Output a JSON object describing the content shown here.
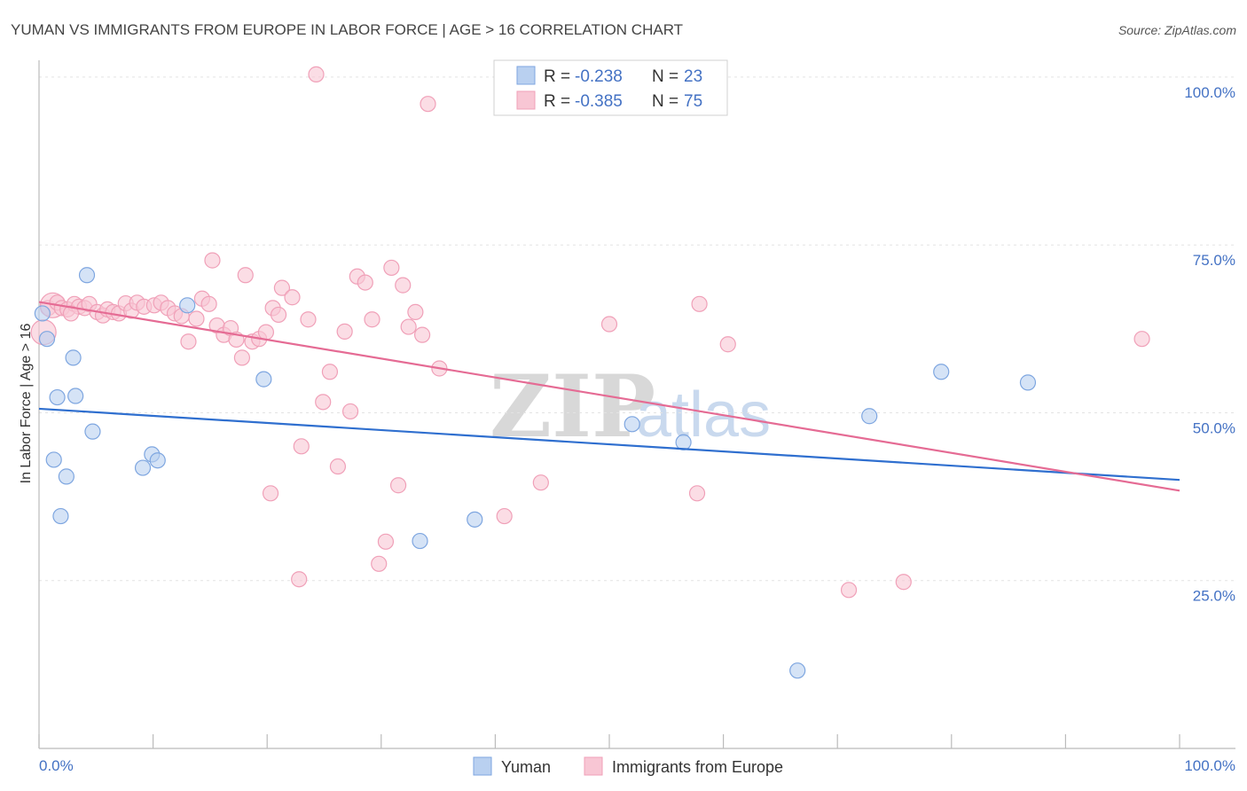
{
  "chart_data": {
    "type": "scatter",
    "title": "YUMAN VS IMMIGRANTS FROM EUROPE IN LABOR FORCE | AGE > 16 CORRELATION CHART",
    "source": "Source: ZipAtlas.com",
    "xlabel": "",
    "ylabel": "In Labor Force | Age > 16",
    "xlim": [
      0,
      100
    ],
    "ylim": [
      0,
      102.5
    ],
    "x_tick_labels": [
      "0.0%",
      "100.0%"
    ],
    "y_ticks": [
      25,
      50,
      75,
      100
    ],
    "y_tick_labels": [
      "25.0%",
      "50.0%",
      "75.0%",
      "100.0%"
    ],
    "grid": true,
    "watermark": {
      "zip": "ZIP",
      "atlas": "atlas"
    },
    "legend": {
      "r_label": "R =",
      "n_label": "N =",
      "entries": [
        {
          "r": "-0.238",
          "n": "23"
        },
        {
          "r": "-0.385",
          "n": "75"
        }
      ]
    },
    "series": [
      {
        "name": "Yuman",
        "color": "#7ea6e0",
        "fill": "#b9d0f0",
        "line_color": "#2f6fcf",
        "trend": [
          [
            0,
            50.6
          ],
          [
            100,
            40.0
          ]
        ],
        "points": [
          [
            0.3,
            64.8
          ],
          [
            0.7,
            61.0
          ],
          [
            1.6,
            52.3
          ],
          [
            1.9,
            34.6
          ],
          [
            1.3,
            43.0
          ],
          [
            2.4,
            40.5
          ],
          [
            3.0,
            58.2
          ],
          [
            3.2,
            52.5
          ],
          [
            4.2,
            70.5
          ],
          [
            4.7,
            47.2
          ],
          [
            9.1,
            41.8
          ],
          [
            9.9,
            43.8
          ],
          [
            10.4,
            42.9
          ],
          [
            13.0,
            66.0
          ],
          [
            19.7,
            55.0
          ],
          [
            33.4,
            30.9
          ],
          [
            38.2,
            34.1
          ],
          [
            52.0,
            48.3
          ],
          [
            56.5,
            45.6
          ],
          [
            72.8,
            49.5
          ],
          [
            79.1,
            56.1
          ],
          [
            86.7,
            54.5
          ],
          [
            66.5,
            11.6
          ]
        ]
      },
      {
        "name": "Immigrants from Europe",
        "color": "#f0a0b8",
        "fill": "#f8c6d4",
        "line_color": "#e56b94",
        "trend": [
          [
            0,
            66.5
          ],
          [
            100,
            38.4
          ]
        ],
        "points": [
          [
            0.4,
            62.0
          ],
          [
            0.8,
            65.6
          ],
          [
            1.2,
            66.0
          ],
          [
            1.6,
            66.4
          ],
          [
            2.0,
            65.6
          ],
          [
            2.5,
            65.4
          ],
          [
            3.1,
            66.2
          ],
          [
            3.5,
            65.8
          ],
          [
            4.0,
            65.6
          ],
          [
            4.4,
            66.2
          ],
          [
            5.1,
            65.0
          ],
          [
            5.6,
            64.5
          ],
          [
            6.0,
            65.4
          ],
          [
            6.5,
            65.0
          ],
          [
            7.0,
            64.8
          ],
          [
            7.6,
            66.3
          ],
          [
            8.1,
            65.2
          ],
          [
            8.6,
            66.4
          ],
          [
            9.2,
            65.8
          ],
          [
            10.1,
            66.0
          ],
          [
            10.7,
            66.4
          ],
          [
            11.3,
            65.6
          ],
          [
            11.9,
            64.8
          ],
          [
            12.5,
            64.4
          ],
          [
            13.1,
            60.6
          ],
          [
            13.8,
            64.0
          ],
          [
            14.3,
            67.0
          ],
          [
            14.9,
            66.2
          ],
          [
            15.2,
            72.7
          ],
          [
            15.6,
            63.0
          ],
          [
            16.2,
            61.6
          ],
          [
            16.8,
            62.6
          ],
          [
            17.3,
            60.9
          ],
          [
            17.8,
            58.2
          ],
          [
            18.1,
            70.5
          ],
          [
            18.7,
            60.6
          ],
          [
            19.3,
            61.0
          ],
          [
            19.9,
            62.0
          ],
          [
            20.5,
            65.6
          ],
          [
            21.0,
            64.6
          ],
          [
            21.3,
            68.6
          ],
          [
            22.2,
            67.2
          ],
          [
            22.8,
            25.2
          ],
          [
            23.0,
            45.0
          ],
          [
            23.6,
            63.9
          ],
          [
            24.3,
            100.4
          ],
          [
            24.9,
            51.6
          ],
          [
            25.5,
            56.1
          ],
          [
            26.2,
            42.0
          ],
          [
            26.8,
            62.1
          ],
          [
            27.3,
            50.2
          ],
          [
            27.9,
            70.3
          ],
          [
            28.6,
            69.4
          ],
          [
            29.2,
            63.9
          ],
          [
            29.8,
            27.5
          ],
          [
            30.4,
            30.8
          ],
          [
            30.9,
            71.6
          ],
          [
            31.5,
            39.2
          ],
          [
            31.9,
            69.0
          ],
          [
            32.4,
            62.8
          ],
          [
            33.0,
            65.0
          ],
          [
            33.6,
            61.6
          ],
          [
            34.1,
            96.0
          ],
          [
            35.1,
            56.6
          ],
          [
            20.3,
            38.0
          ],
          [
            40.8,
            34.6
          ],
          [
            44.0,
            39.6
          ],
          [
            50.0,
            63.2
          ],
          [
            57.7,
            38.0
          ],
          [
            57.9,
            66.2
          ],
          [
            60.4,
            60.2
          ],
          [
            71.0,
            23.6
          ],
          [
            75.8,
            24.8
          ],
          [
            96.7,
            61.0
          ],
          [
            2.8,
            64.8
          ]
        ]
      }
    ]
  }
}
